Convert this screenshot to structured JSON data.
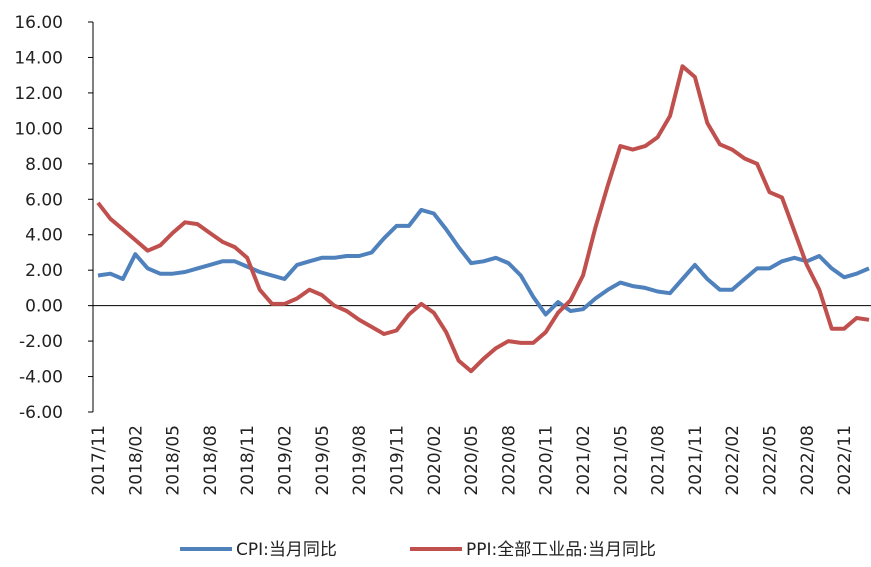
{
  "chart_data": {
    "type": "line",
    "categories": [
      "2017/11",
      null,
      null,
      "2018/02",
      null,
      null,
      "2018/05",
      null,
      null,
      "2018/08",
      null,
      null,
      "2018/11",
      null,
      null,
      "2019/02",
      null,
      null,
      "2019/05",
      null,
      null,
      "2019/08",
      null,
      null,
      "2019/11",
      null,
      null,
      "2020/02",
      null,
      null,
      "2020/05",
      null,
      null,
      "2020/08",
      null,
      null,
      "2020/11",
      null,
      null,
      "2021/02",
      null,
      null,
      "2021/05",
      null,
      null,
      "2021/08",
      null,
      null,
      "2021/11",
      null,
      null,
      "2022/02",
      null,
      null,
      "2022/05",
      null,
      null,
      "2022/08",
      null,
      null,
      "2022/11",
      null,
      null
    ],
    "series": [
      {
        "name": "CPI:当月同比",
        "color": "#4f81bd",
        "values": [
          1.7,
          1.8,
          1.5,
          2.9,
          2.1,
          1.8,
          1.8,
          1.9,
          2.1,
          2.3,
          2.5,
          2.5,
          2.2,
          1.9,
          1.7,
          1.5,
          2.3,
          2.5,
          2.7,
          2.7,
          2.8,
          2.8,
          3.0,
          3.8,
          4.5,
          4.5,
          5.4,
          5.2,
          4.3,
          3.3,
          2.4,
          2.5,
          2.7,
          2.4,
          1.7,
          0.5,
          -0.5,
          0.2,
          -0.3,
          -0.2,
          0.4,
          0.9,
          1.3,
          1.1,
          1.0,
          0.8,
          0.7,
          1.5,
          2.3,
          1.5,
          0.9,
          0.9,
          1.5,
          2.1,
          2.1,
          2.5,
          2.7,
          2.5,
          2.8,
          2.1,
          1.6,
          1.8,
          2.1
        ]
      },
      {
        "name": "PPI:全部工业品:当月同比",
        "color": "#c0504d",
        "values": [
          5.8,
          4.9,
          4.3,
          3.7,
          3.1,
          3.4,
          4.1,
          4.7,
          4.6,
          4.1,
          3.6,
          3.3,
          2.7,
          0.9,
          0.1,
          0.1,
          0.4,
          0.9,
          0.6,
          0.0,
          -0.3,
          -0.8,
          -1.2,
          -1.6,
          -1.4,
          -0.5,
          0.1,
          -0.4,
          -1.5,
          -3.1,
          -3.7,
          -3.0,
          -2.4,
          -2.0,
          -2.1,
          -2.1,
          -1.5,
          -0.4,
          0.3,
          1.7,
          4.4,
          6.8,
          9.0,
          8.8,
          9.0,
          9.5,
          10.7,
          13.5,
          12.9,
          10.3,
          9.1,
          8.8,
          8.3,
          8.0,
          6.4,
          6.1,
          4.2,
          2.3,
          0.9,
          -1.3,
          -1.3,
          -0.7,
          -0.8
        ]
      }
    ],
    "ylim": [
      -6,
      16
    ],
    "yticks": [
      {
        "value": -6,
        "label": "-6.00"
      },
      {
        "value": -4,
        "label": "-4.00"
      },
      {
        "value": -2,
        "label": "-2.00"
      },
      {
        "value": 0,
        "label": "0.00"
      },
      {
        "value": 2,
        "label": "2.00"
      },
      {
        "value": 4,
        "label": "4.00"
      },
      {
        "value": 6,
        "label": "6.00"
      },
      {
        "value": 8,
        "label": "8.00"
      },
      {
        "value": 10,
        "label": "10.00"
      },
      {
        "value": 12,
        "label": "12.00"
      },
      {
        "value": 14,
        "label": "14.00"
      },
      {
        "value": 16,
        "label": "16.00"
      }
    ],
    "grid": false,
    "legend": "bottom"
  }
}
